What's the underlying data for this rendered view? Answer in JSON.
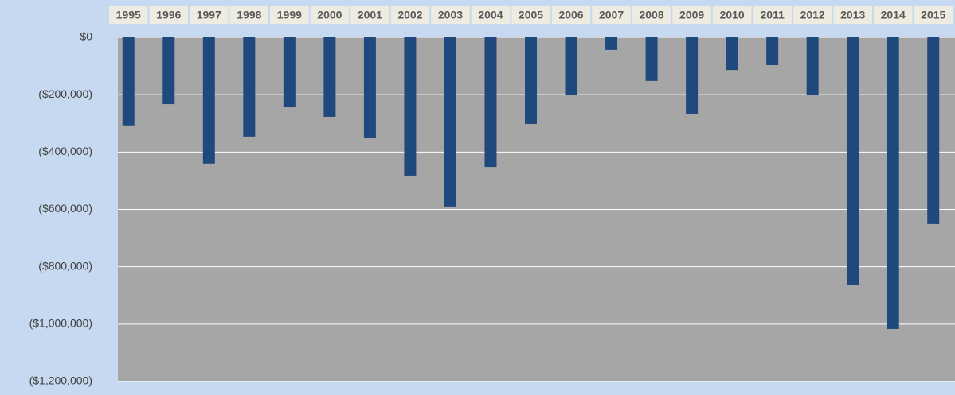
{
  "chart_data": {
    "type": "bar",
    "categories": [
      "1995",
      "1996",
      "1997",
      "1998",
      "1999",
      "2000",
      "2001",
      "2002",
      "2003",
      "2004",
      "2005",
      "2006",
      "2007",
      "2008",
      "2009",
      "2010",
      "2011",
      "2012",
      "2013",
      "2014",
      "2015"
    ],
    "values": [
      -307000,
      -233000,
      -440000,
      -346000,
      -244000,
      -277000,
      -352000,
      -482000,
      -590000,
      -452000,
      -302000,
      -202000,
      -44000,
      -152000,
      -266000,
      -114000,
      -97000,
      -202000,
      -862000,
      -1017000,
      -651000
    ],
    "color": "#1f497d",
    "ylim": [
      -1200000,
      0
    ],
    "yticks": [
      {
        "value": 0,
        "label": "$0"
      },
      {
        "value": -200000,
        "label": "($200,000)"
      },
      {
        "value": -400000,
        "label": "($400,000)"
      },
      {
        "value": -600000,
        "label": "($600,000)"
      },
      {
        "value": -800000,
        "label": "($800,000)"
      },
      {
        "value": -1000000,
        "label": "($1,000,000)"
      },
      {
        "value": -1200000,
        "label": "($1,200,000)"
      }
    ],
    "grid": true
  }
}
